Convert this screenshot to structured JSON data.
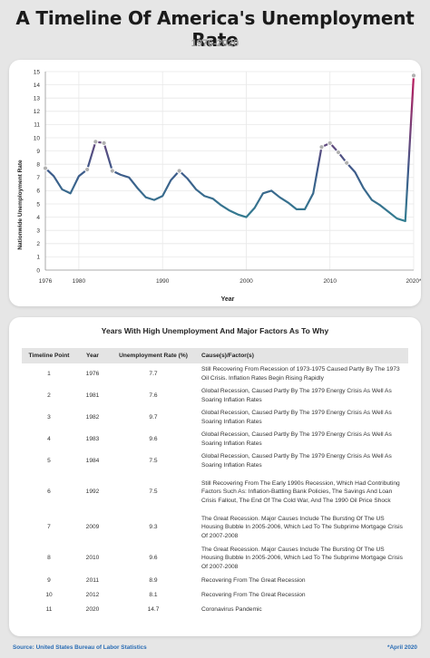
{
  "header": {
    "title": "A Timeline Of America's Unemployment Rate",
    "subtitle": "1976-2020"
  },
  "chart_data": {
    "type": "line",
    "ylabel": "Nationwide Unemployment Rate",
    "xlabel": "Year",
    "ylim": [
      0,
      15
    ],
    "xlim": [
      1976,
      2020
    ],
    "yticks": [
      "0",
      "1",
      "2",
      "3",
      "4",
      "5",
      "6",
      "7",
      "8",
      "9",
      "10",
      "11",
      "12",
      "13",
      "14",
      "15"
    ],
    "xticks": [
      {
        "label": "1976",
        "value": 1976
      },
      {
        "label": "1980",
        "value": 1980
      },
      {
        "label": "1990",
        "value": 1990
      },
      {
        "label": "2000",
        "value": 2000
      },
      {
        "label": "2010",
        "value": 2010
      },
      {
        "label": "2020*",
        "value": 2020
      }
    ],
    "grid": true,
    "colors": {
      "line_low": "#2aa198",
      "line_mid": "#3d5a8a",
      "line_high": "#c2185b",
      "marker": "#b0b0b0",
      "grid": "#e8e8e8"
    },
    "x": [
      1976,
      1977,
      1978,
      1979,
      1980,
      1981,
      1982,
      1983,
      1984,
      1985,
      1986,
      1987,
      1988,
      1989,
      1990,
      1991,
      1992,
      1993,
      1994,
      1995,
      1996,
      1997,
      1998,
      1999,
      2000,
      2001,
      2002,
      2003,
      2004,
      2005,
      2006,
      2007,
      2008,
      2009,
      2010,
      2011,
      2012,
      2013,
      2014,
      2015,
      2016,
      2017,
      2018,
      2019,
      2020
    ],
    "values": [
      7.7,
      7.1,
      6.1,
      5.8,
      7.1,
      7.6,
      9.7,
      9.6,
      7.5,
      7.2,
      7.0,
      6.2,
      5.5,
      5.3,
      5.6,
      6.8,
      7.5,
      6.9,
      6.1,
      5.6,
      5.4,
      4.9,
      4.5,
      4.2,
      4.0,
      4.7,
      5.8,
      6.0,
      5.5,
      5.1,
      4.6,
      4.6,
      5.8,
      9.3,
      9.6,
      8.9,
      8.1,
      7.4,
      6.2,
      5.3,
      4.9,
      4.4,
      3.9,
      3.7,
      14.7
    ],
    "highlight_years": [
      1976,
      1981,
      1982,
      1983,
      1984,
      1992,
      2009,
      2010,
      2011,
      2012,
      2020
    ]
  },
  "table": {
    "title": "Years With High Unemployment And Major Factors As To Why",
    "headers": [
      "Timeline Point",
      "Year",
      "Unemployment Rate (%)",
      "Cause(s)/Factor(s)"
    ],
    "rows": [
      [
        "1",
        "1976",
        "7.7",
        "Still Recovering From Recession of 1973-1975 Caused Partly By The 1973 Oil Crisis. Inflation Rates Begin Rising Rapidly"
      ],
      [
        "2",
        "1981",
        "7.6",
        "Global Recession, Caused Partly By The 1979 Energy Crisis As Well As Soaring Inflation Rates"
      ],
      [
        "3",
        "1982",
        "9.7",
        "Global Recession, Caused Partly By The 1979 Energy Crisis As Well As Soaring Inflation Rates"
      ],
      [
        "4",
        "1983",
        "9.6",
        "Global Recession, Caused Partly By The 1979 Energy Crisis As Well As Soaring Inflation Rates"
      ],
      [
        "5",
        "1984",
        "7.5",
        "Global Recession, Caused Partly By The 1979 Energy Crisis As Well As Soaring Inflation Rates"
      ],
      [
        "6",
        "1992",
        "7.5",
        "Still Recovering From The Early 1990s Recession, Which Had Contributing Factors Such As: Inflation-Battling Bank Policies, The Savings And Loan Crisis Fallout, The End Of The Cold War, And The 1990 Oil Price Shock"
      ],
      [
        "7",
        "2009",
        "9.3",
        "The Great Recession. Major Causes Include The Bursting Of The US Housing Bubble In 2005-2006, Which Led To The Subprime Mortgage Crisis Of 2007-2008"
      ],
      [
        "8",
        "2010",
        "9.6",
        "The Great Recession. Major Causes Include The Bursting Of The US Housing Bubble In 2005-2006, Which Led To The Subprime Mortgage Crisis Of 2007-2008"
      ],
      [
        "9",
        "2011",
        "8.9",
        "Recovering From The Great Recession"
      ],
      [
        "10",
        "2012",
        "8.1",
        "Recovering From The Great Recession"
      ],
      [
        "11",
        "2020",
        "14.7",
        "Coronavirus Pandemic"
      ]
    ]
  },
  "footer": {
    "source": "Source: United States Bureau of Labor Statistics",
    "note": "*April 2020"
  }
}
